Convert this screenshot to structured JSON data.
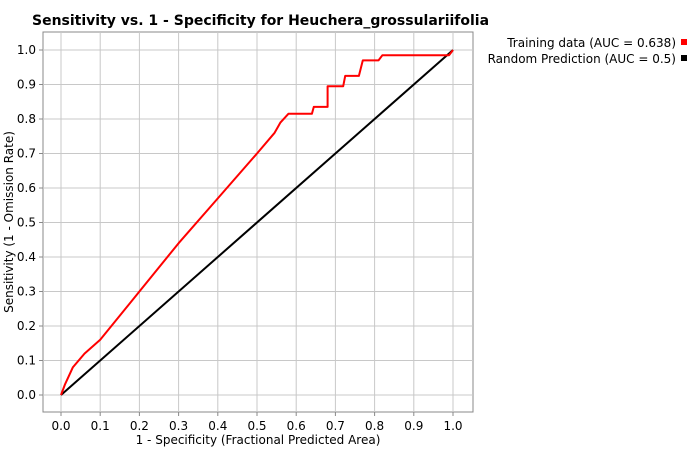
{
  "chart_data": {
    "type": "line",
    "title": "Sensitivity vs. 1 - Specificity for Heuchera_grossulariifolia",
    "xlabel": "1 - Specificity  (Fractional Predicted Area)",
    "ylabel": "Sensitivity  (1 - Omission Rate)",
    "xlim": [
      0.0,
      1.0
    ],
    "ylim": [
      0.0,
      1.0
    ],
    "x_ticks": [
      "0.0",
      "0.1",
      "0.2",
      "0.3",
      "0.4",
      "0.5",
      "0.6",
      "0.7",
      "0.8",
      "0.9",
      "1.0"
    ],
    "y_ticks": [
      "0.0",
      "0.1",
      "0.2",
      "0.3",
      "0.4",
      "0.5",
      "0.6",
      "0.7",
      "0.8",
      "0.9",
      "1.0"
    ],
    "grid": true,
    "legend_position": "top-right, outside plot",
    "series": [
      {
        "name": "Training data (AUC = 0.638)",
        "color": "#ff0000",
        "x": [
          0.0,
          0.01,
          0.03,
          0.06,
          0.1,
          0.2,
          0.3,
          0.4,
          0.5,
          0.545,
          0.56,
          0.58,
          0.6,
          0.64,
          0.645,
          0.68,
          0.68,
          0.72,
          0.725,
          0.76,
          0.77,
          0.81,
          0.82,
          0.93,
          0.99,
          1.0
        ],
        "y": [
          0.0,
          0.03,
          0.08,
          0.12,
          0.16,
          0.3,
          0.44,
          0.57,
          0.7,
          0.76,
          0.79,
          0.815,
          0.815,
          0.815,
          0.835,
          0.835,
          0.895,
          0.895,
          0.925,
          0.925,
          0.97,
          0.97,
          0.985,
          0.985,
          0.985,
          1.0
        ]
      },
      {
        "name": "Random Prediction (AUC = 0.5)",
        "color": "#000000",
        "x": [
          0.0,
          1.0
        ],
        "y": [
          0.0,
          1.0
        ]
      }
    ]
  }
}
